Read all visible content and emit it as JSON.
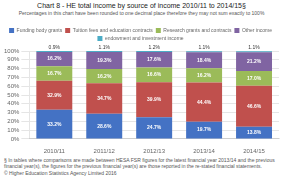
{
  "chart_data": {
    "type": "bar",
    "stacked": true,
    "title": "Chart 8 - HE total income by source of income 2010/11 to 2014/15§",
    "subtitle": "Percentages in this chart have been rounded to one decimal place therefore they may not sum exactly to 100%",
    "annotations": [
      "§ In tables where comparisons are made between HESA FSR figures for the latest financial year 2013/14 and the previous financial year(s), the figures for the previous financial year(s) are those reported in the re-stated financial statements.",
      "© Higher Education Statistics Agency Limited 2016"
    ],
    "categories": [
      "2010/11",
      "2011/12",
      "2012/13",
      "2013/14",
      "2014/15"
    ],
    "series": [
      {
        "name": "Funding body grants",
        "color": "#4472C4",
        "values": [
          33.2,
          28.6,
          24.7,
          19.7,
          13.8
        ],
        "value_labels": [
          "33.2%",
          "28.6%",
          "24.7%",
          "19.7%",
          "13.8%"
        ]
      },
      {
        "name": "Tuition fees and education contracts",
        "color": "#C0504D",
        "values": [
          32.9,
          34.7,
          39.9,
          44.4,
          46.6
        ],
        "value_labels": [
          "32.9%",
          "34.7%",
          "39.9%",
          "44.4%",
          "46.6%"
        ]
      },
      {
        "name": "Research grants and contracts",
        "color": "#9BBB59",
        "values": [
          16.7,
          16.2,
          16.6,
          16.2,
          17.0
        ],
        "value_labels": [
          "16.7%",
          "16.2%",
          "16.6%",
          "16.2%",
          "17.0%"
        ]
      },
      {
        "name": "Other income",
        "color": "#8064A2",
        "values": [
          16.2,
          19.3,
          17.6,
          18.4,
          21.2
        ],
        "value_labels": [
          "16.2%",
          "19.3%",
          "17.6%",
          "18.4%",
          "21.2%"
        ]
      },
      {
        "name": "endowment and investment income",
        "color": "#4BACC6",
        "values": [
          0.9,
          1.1,
          1.2,
          1.1,
          1.1
        ],
        "value_labels": [
          "0.9%",
          "1.1%",
          "1.2%",
          "1.1%",
          "1.1%"
        ]
      }
    ],
    "ylim": [
      0,
      100
    ],
    "yticks": [
      {
        "value": 0,
        "label": "0%"
      },
      {
        "value": 10,
        "label": "10%"
      },
      {
        "value": 20,
        "label": "20%"
      },
      {
        "value": 30,
        "label": "30%"
      },
      {
        "value": 40,
        "label": "40%"
      },
      {
        "value": 50,
        "label": "50%"
      },
      {
        "value": 60,
        "label": "60%"
      },
      {
        "value": 70,
        "label": "70%"
      },
      {
        "value": 80,
        "label": "80%"
      },
      {
        "value": 90,
        "label": "90%"
      },
      {
        "value": 100,
        "label": "100%"
      }
    ],
    "grid": true,
    "data_labels": true,
    "legend": "top"
  }
}
